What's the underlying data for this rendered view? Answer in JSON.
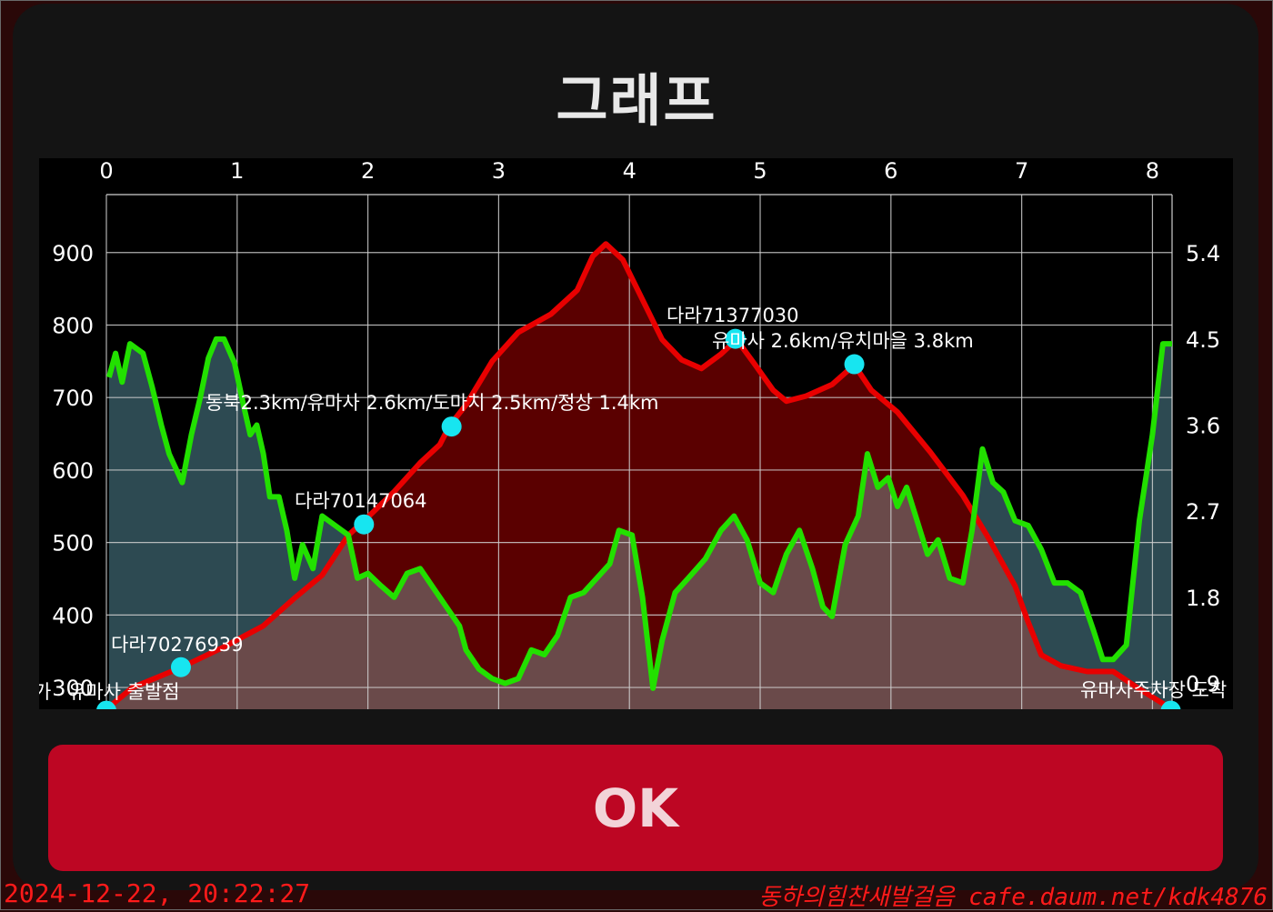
{
  "dialog": {
    "title": "그래프",
    "ok_label": "OK"
  },
  "footer": {
    "timestamp": "2024-12-22, 20:22:27",
    "credit": "동하의힘찬새발걸음 cafe.daum.net/kdk4876"
  },
  "colors": {
    "elevation_line": "#e80000",
    "elevation_fill": "#5a0000",
    "speed_line": "#22e000",
    "speed_fill": "#2d4a52",
    "overlap_fill": "#6a4a4a",
    "grid": "#cfcfcf",
    "waypoint": "#17e5f0",
    "ok_button": "#bd0623"
  },
  "chart_data": {
    "type": "line",
    "x_ticks": [
      "0",
      "1",
      "2",
      "3",
      "4",
      "5",
      "6",
      "7",
      "8"
    ],
    "y_left_ticks": [
      "300",
      "400",
      "500",
      "600",
      "700",
      "800",
      "900"
    ],
    "y_right_ticks": [
      "0.9",
      "1.8",
      "2.7",
      "3.6",
      "4.5",
      "5.4"
    ],
    "xlim": [
      0,
      8.15
    ],
    "ylim_left": [
      270,
      980
    ],
    "ylim_right": [
      0.63,
      6.01
    ],
    "grid": true,
    "series": [
      {
        "axis": "left",
        "points": [
          [
            0,
            270
          ],
          [
            0.2,
            300
          ],
          [
            0.55,
            326
          ],
          [
            0.9,
            356
          ],
          [
            1.2,
            385
          ],
          [
            1.45,
            425
          ],
          [
            1.65,
            455
          ],
          [
            1.85,
            510
          ],
          [
            2.0,
            535
          ],
          [
            2.2,
            570
          ],
          [
            2.4,
            610
          ],
          [
            2.55,
            635
          ],
          [
            2.62,
            660
          ],
          [
            2.75,
            690
          ],
          [
            2.95,
            750
          ],
          [
            3.15,
            790
          ],
          [
            3.4,
            815
          ],
          [
            3.6,
            848
          ],
          [
            3.72,
            895
          ],
          [
            3.82,
            912
          ],
          [
            3.95,
            890
          ],
          [
            4.1,
            835
          ],
          [
            4.25,
            780
          ],
          [
            4.4,
            752
          ],
          [
            4.55,
            740
          ],
          [
            4.7,
            760
          ],
          [
            4.82,
            780
          ],
          [
            4.95,
            748
          ],
          [
            5.1,
            710
          ],
          [
            5.2,
            695
          ],
          [
            5.35,
            702
          ],
          [
            5.55,
            718
          ],
          [
            5.72,
            745
          ],
          [
            5.85,
            710
          ],
          [
            6.05,
            680
          ],
          [
            6.3,
            625
          ],
          [
            6.55,
            565
          ],
          [
            6.75,
            505
          ],
          [
            6.95,
            440
          ],
          [
            7.05,
            390
          ],
          [
            7.15,
            345
          ],
          [
            7.3,
            330
          ],
          [
            7.5,
            322
          ],
          [
            7.7,
            322
          ],
          [
            7.9,
            298
          ],
          [
            8.15,
            270
          ]
        ]
      },
      {
        "axis": "right",
        "points": [
          [
            0.02,
            4.1
          ],
          [
            0.07,
            4.35
          ],
          [
            0.12,
            4.05
          ],
          [
            0.18,
            4.45
          ],
          [
            0.28,
            4.35
          ],
          [
            0.35,
            4.0
          ],
          [
            0.42,
            3.6
          ],
          [
            0.48,
            3.3
          ],
          [
            0.53,
            3.15
          ],
          [
            0.58,
            3.0
          ],
          [
            0.65,
            3.5
          ],
          [
            0.72,
            3.9
          ],
          [
            0.78,
            4.3
          ],
          [
            0.84,
            4.5
          ],
          [
            0.9,
            4.5
          ],
          [
            0.98,
            4.25
          ],
          [
            1.05,
            3.8
          ],
          [
            1.1,
            3.5
          ],
          [
            1.15,
            3.6
          ],
          [
            1.2,
            3.3
          ],
          [
            1.25,
            2.85
          ],
          [
            1.32,
            2.85
          ],
          [
            1.38,
            2.5
          ],
          [
            1.44,
            2.0
          ],
          [
            1.5,
            2.35
          ],
          [
            1.58,
            2.1
          ],
          [
            1.65,
            2.65
          ],
          [
            1.75,
            2.55
          ],
          [
            1.85,
            2.45
          ],
          [
            1.92,
            2.0
          ],
          [
            2.0,
            2.05
          ],
          [
            2.1,
            1.92
          ],
          [
            2.2,
            1.8
          ],
          [
            2.3,
            2.05
          ],
          [
            2.4,
            2.1
          ],
          [
            2.5,
            1.9
          ],
          [
            2.6,
            1.7
          ],
          [
            2.7,
            1.5
          ],
          [
            2.75,
            1.25
          ],
          [
            2.85,
            1.05
          ],
          [
            2.95,
            0.95
          ],
          [
            3.05,
            0.9
          ],
          [
            3.15,
            0.95
          ],
          [
            3.25,
            1.25
          ],
          [
            3.35,
            1.2
          ],
          [
            3.45,
            1.4
          ],
          [
            3.55,
            1.8
          ],
          [
            3.65,
            1.85
          ],
          [
            3.75,
            2.0
          ],
          [
            3.85,
            2.15
          ],
          [
            3.92,
            2.5
          ],
          [
            4.02,
            2.45
          ],
          [
            4.1,
            1.8
          ],
          [
            4.18,
            0.85
          ],
          [
            4.25,
            1.35
          ],
          [
            4.35,
            1.85
          ],
          [
            4.45,
            2.0
          ],
          [
            4.58,
            2.2
          ],
          [
            4.7,
            2.5
          ],
          [
            4.8,
            2.65
          ],
          [
            4.9,
            2.4
          ],
          [
            5.0,
            1.95
          ],
          [
            5.1,
            1.85
          ],
          [
            5.2,
            2.25
          ],
          [
            5.3,
            2.5
          ],
          [
            5.4,
            2.1
          ],
          [
            5.48,
            1.7
          ],
          [
            5.55,
            1.6
          ],
          [
            5.65,
            2.35
          ],
          [
            5.75,
            2.65
          ],
          [
            5.82,
            3.3
          ],
          [
            5.9,
            2.95
          ],
          [
            5.98,
            3.05
          ],
          [
            6.05,
            2.75
          ],
          [
            6.12,
            2.95
          ],
          [
            6.2,
            2.6
          ],
          [
            6.28,
            2.25
          ],
          [
            6.36,
            2.4
          ],
          [
            6.45,
            2.0
          ],
          [
            6.55,
            1.95
          ],
          [
            6.62,
            2.5
          ],
          [
            6.7,
            3.35
          ],
          [
            6.78,
            3.0
          ],
          [
            6.86,
            2.9
          ],
          [
            6.95,
            2.6
          ],
          [
            7.05,
            2.55
          ],
          [
            7.15,
            2.3
          ],
          [
            7.25,
            1.95
          ],
          [
            7.35,
            1.95
          ],
          [
            7.45,
            1.85
          ],
          [
            7.55,
            1.45
          ],
          [
            7.62,
            1.15
          ],
          [
            7.7,
            1.15
          ],
          [
            7.8,
            1.3
          ],
          [
            7.9,
            2.6
          ],
          [
            8.0,
            3.5
          ],
          [
            8.08,
            4.45
          ],
          [
            8.15,
            4.45
          ]
        ]
      }
    ],
    "annotations": [
      {
        "x": 0.0,
        "y": 268,
        "label": "유마사 출발점",
        "partial_prefix": "가"
      },
      {
        "x": 0.57,
        "y": 328,
        "label": "다라70276939"
      },
      {
        "x": 1.97,
        "y": 525,
        "label": "다라70147064"
      },
      {
        "x": 2.64,
        "y": 660,
        "label": "동북2.3km/유마사 2.6km/도마치 2.5km/정상 1.4km"
      },
      {
        "x": 4.81,
        "y": 781,
        "label": "다라71377030"
      },
      {
        "x": 4.81,
        "y": 781,
        "label": "유마사 2.6km/유치마을 3.8km"
      },
      {
        "x": 5.72,
        "y": 746,
        "label": ""
      },
      {
        "x": 8.14,
        "y": 268,
        "label": "유마사주차장 도착"
      }
    ]
  }
}
